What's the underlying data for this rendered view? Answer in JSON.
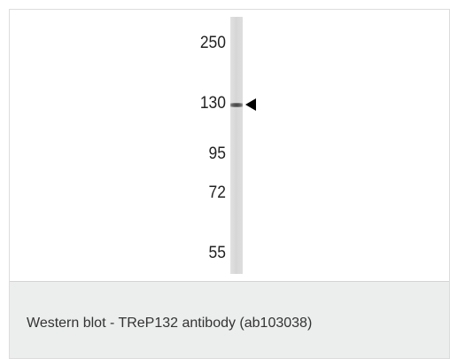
{
  "blot": {
    "markers": [
      {
        "label": "250"
      },
      {
        "label": "130"
      },
      {
        "label": "95"
      },
      {
        "label": "72"
      },
      {
        "label": "55"
      }
    ],
    "band_marker": "130"
  },
  "caption": {
    "text": "Western blot - TReP132 antibody (ab103038)"
  },
  "colors": {
    "caption_background": "#eceded",
    "lane": "#d6d6d6",
    "arrow": "#000000"
  }
}
